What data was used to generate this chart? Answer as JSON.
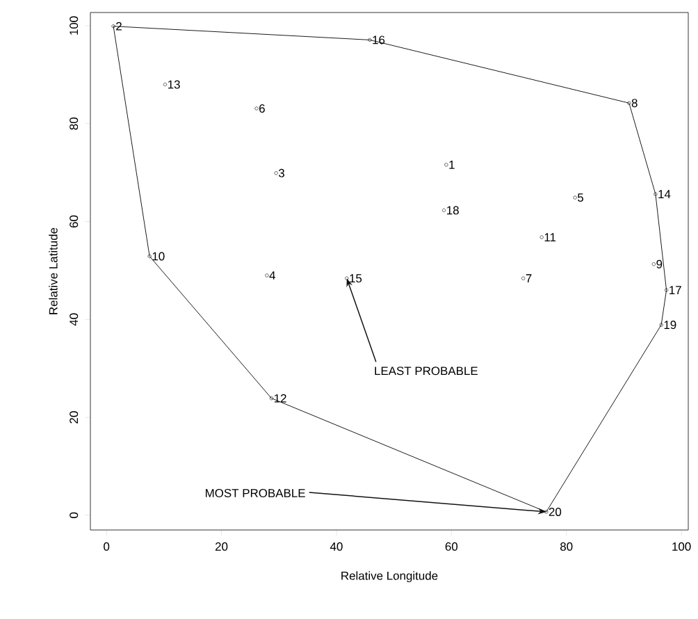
{
  "chart_data": {
    "type": "scatter",
    "xlabel": "Relative Longitude",
    "ylabel": "Relative Latitude",
    "xlim": [
      -2.8,
      101.2
    ],
    "ylim": [
      -3,
      102.7
    ],
    "xticks": [
      0,
      20,
      40,
      60,
      80,
      100
    ],
    "yticks": [
      0,
      20,
      40,
      60,
      80,
      100
    ],
    "series": [
      {
        "type": "line",
        "color": "#000000",
        "marker": "none",
        "line_style": "solid",
        "x": [
          1.2,
          45.8,
          90.9,
          95.5,
          97.4
        ],
        "values": [
          99.9,
          97.1,
          84.2,
          65.6,
          46.0
        ]
      },
      {
        "type": "line",
        "color": "#000000",
        "marker": "none",
        "line_style": "solid",
        "x": [
          1.2,
          7.5,
          28.7,
          76.5,
          96.5,
          97.4
        ],
        "values": [
          99.9,
          52.9,
          23.9,
          0.7,
          38.9,
          46.0
        ]
      },
      {
        "color": "#000000",
        "marker": "circle",
        "x": [
          59.1,
          1.2,
          29.5,
          27.9,
          81.5,
          26.1,
          72.5,
          90.9,
          95.2,
          7.5,
          75.7,
          28.7,
          10.2,
          95.5,
          41.8,
          45.8,
          97.4,
          58.7,
          96.5,
          76.5
        ],
        "values": [
          71.6,
          99.9,
          69.9,
          49.0,
          64.9,
          83.1,
          48.4,
          84.2,
          51.3,
          52.9,
          56.8,
          23.9,
          88.0,
          65.6,
          48.4,
          97.1,
          46.0,
          62.3,
          38.9,
          0.7
        ]
      }
    ],
    "annotations": [
      {
        "text": "1",
        "x": 59.1,
        "y": 71.6
      },
      {
        "text": "2",
        "x": 1.2,
        "y": 99.9
      },
      {
        "text": "3",
        "x": 29.5,
        "y": 69.9
      },
      {
        "text": "4",
        "x": 27.9,
        "y": 49.0
      },
      {
        "text": "5",
        "x": 81.5,
        "y": 64.9
      },
      {
        "text": "6",
        "x": 26.1,
        "y": 83.1
      },
      {
        "text": "7",
        "x": 72.5,
        "y": 48.4
      },
      {
        "text": "8",
        "x": 90.9,
        "y": 84.2
      },
      {
        "text": "9",
        "x": 95.2,
        "y": 51.3
      },
      {
        "text": "10",
        "x": 7.5,
        "y": 52.9
      },
      {
        "text": "11",
        "x": 75.7,
        "y": 56.8
      },
      {
        "text": "12",
        "x": 28.7,
        "y": 23.9
      },
      {
        "text": "13",
        "x": 10.2,
        "y": 88.0
      },
      {
        "text": "14",
        "x": 95.5,
        "y": 65.6
      },
      {
        "text": "15",
        "x": 41.8,
        "y": 48.4
      },
      {
        "text": "16",
        "x": 45.8,
        "y": 97.1
      },
      {
        "text": "17",
        "x": 97.4,
        "y": 46.0
      },
      {
        "text": "18",
        "x": 58.7,
        "y": 62.3
      },
      {
        "text": "19",
        "x": 96.5,
        "y": 38.9
      },
      {
        "text": "20",
        "x": 76.5,
        "y": 0.7
      },
      {
        "text": "LEAST PROBABLE",
        "x": 41.8,
        "y": 48.4
      },
      {
        "text": "MOST PROBABLE",
        "x": 76.5,
        "y": 0.7
      }
    ]
  }
}
